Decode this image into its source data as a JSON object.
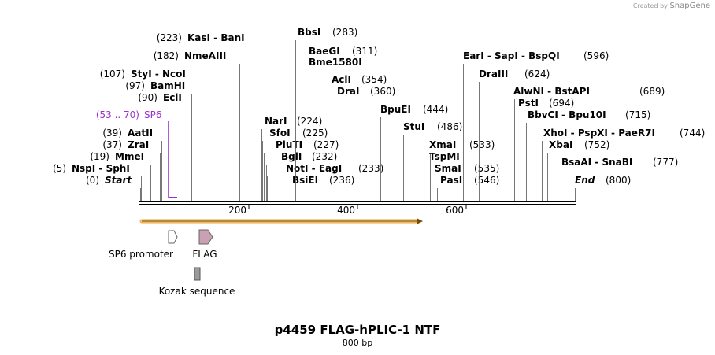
{
  "credit": {
    "prefix": "Created by",
    "brand": "SnapGene"
  },
  "title": "p4459 FLAG-hPLIC-1 NTF",
  "length_label": "800 bp",
  "scale_ticks": [
    "200",
    "400",
    "600"
  ],
  "sites": [
    {
      "name": "Start",
      "pos": "(0)",
      "italic": true
    },
    {
      "name": "NspI  -  SphI",
      "pos": "(5)"
    },
    {
      "name": "MmeI",
      "pos": "(19)"
    },
    {
      "name": "ZraI",
      "pos": "(37)"
    },
    {
      "name": "AatII",
      "pos": "(39)"
    },
    {
      "name": "SP6",
      "pos": "(53 .. 70)",
      "primer": true
    },
    {
      "name": "EclI",
      "pos": "(90)"
    },
    {
      "name": "BamHI",
      "pos": "(97)"
    },
    {
      "name": "StyI  -  NcoI",
      "pos": "(107)"
    },
    {
      "name": "NmeAIII",
      "pos": "(182)"
    },
    {
      "name": "KasI  -  BanI",
      "pos": "(223)"
    },
    {
      "name": "NarI",
      "pos": "(224)"
    },
    {
      "name": "SfoI",
      "pos": "(225)"
    },
    {
      "name": "PluTI",
      "pos": "(227)"
    },
    {
      "name": "BglI",
      "pos": "(232)"
    },
    {
      "name": "NotI  -  EagI",
      "pos": "(233)"
    },
    {
      "name": "BsiEI",
      "pos": "(236)"
    },
    {
      "name": "BbsI",
      "pos": "(283)"
    },
    {
      "name": "BaeGI",
      "pos": "(311)"
    },
    {
      "name": "Bme1580I",
      "pos": ""
    },
    {
      "name": "AclI",
      "pos": "(354)"
    },
    {
      "name": "DraI",
      "pos": "(360)"
    },
    {
      "name": "BpuEI",
      "pos": "(444)"
    },
    {
      "name": "StuI",
      "pos": "(486)"
    },
    {
      "name": "XmaI",
      "pos": "(533)"
    },
    {
      "name": "TspMI",
      "pos": ""
    },
    {
      "name": "SmaI",
      "pos": "(535)"
    },
    {
      "name": "PasI",
      "pos": "(546)"
    },
    {
      "name": "EarI  -  SapI  -  BspQI",
      "pos": "(596)"
    },
    {
      "name": "DraIII",
      "pos": "(624)"
    },
    {
      "name": "AlwNI  -  BstAPI",
      "pos": "(689)"
    },
    {
      "name": "PstI",
      "pos": "(694)"
    },
    {
      "name": "BbvCI  -  Bpu10I",
      "pos": "(715)"
    },
    {
      "name": "XhoI  -  PspXI  -  PaeR7I",
      "pos": "(744)"
    },
    {
      "name": "XbaI",
      "pos": "(752)"
    },
    {
      "name": "BsaAI  -  SnaBI",
      "pos": "(777)"
    },
    {
      "name": "End",
      "pos": "(800)",
      "italic": true
    }
  ],
  "features": [
    {
      "name": "SP6 promoter",
      "color": "#ffffff"
    },
    {
      "name": "FLAG",
      "color": "#c9a0b4"
    },
    {
      "name": "Kozak sequence",
      "color": "#9a9a9a"
    }
  ],
  "colors": {
    "primer": "#9933cc",
    "orf_fill": "#f5c77e",
    "orf_edge": "#e8a93c",
    "backbone": "#000000"
  }
}
